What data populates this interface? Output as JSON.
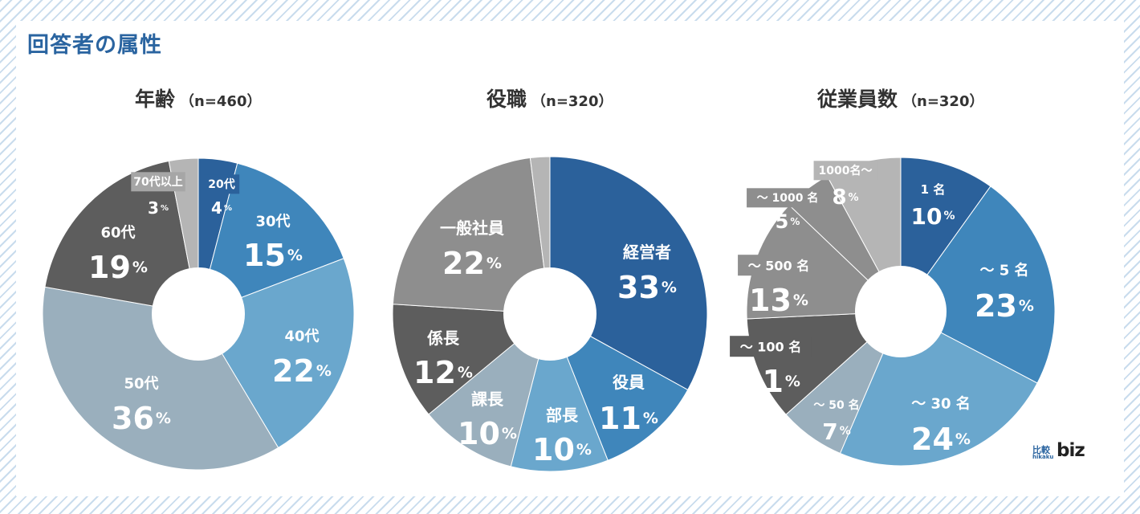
{
  "header": {
    "title": "回答者の属性"
  },
  "logo": {
    "kanji": "比較",
    "romaji": "hikaku",
    "word": "biz"
  },
  "colors": {
    "dark_blue": "#2b619b",
    "mid_blue": "#3f86bb",
    "light_blue": "#6aa7cd",
    "blue_gray": "#9aafbd",
    "dark_gray": "#5d5d5d",
    "mid_gray": "#8e8e8e",
    "light_gray": "#b5b5b5"
  },
  "chart_data": [
    {
      "type": "pie",
      "title": "年齢",
      "n_label": "（n=460）",
      "slices": [
        {
          "label": "20代",
          "value": 4,
          "value_text": "4",
          "color": "#2b619b"
        },
        {
          "label": "30代",
          "value": 15,
          "value_text": "15",
          "color": "#3f86bb"
        },
        {
          "label": "40代",
          "value": 22,
          "value_text": "22",
          "color": "#6aa7cd"
        },
        {
          "label": "50代",
          "value": 36,
          "value_text": "36",
          "color": "#9aafbd"
        },
        {
          "label": "60代",
          "value": 19,
          "value_text": "19",
          "color": "#5d5d5d"
        },
        {
          "label": "70代以上",
          "value": 3,
          "value_text": "3",
          "color": "#b5b5b5"
        }
      ],
      "unit": "%"
    },
    {
      "type": "pie",
      "title": "役職",
      "n_label": "（n=320）",
      "slices": [
        {
          "label": "経営者",
          "value": 33,
          "value_text": "33",
          "color": "#2b619b"
        },
        {
          "label": "役員",
          "value": 11,
          "value_text": "11",
          "color": "#3f86bb"
        },
        {
          "label": "部長",
          "value": 10,
          "value_text": "10",
          "color": "#6aa7cd"
        },
        {
          "label": "課長",
          "value": 10,
          "value_text": "10",
          "color": "#9aafbd"
        },
        {
          "label": "係長",
          "value": 12,
          "value_text": "12",
          "color": "#5d5d5d"
        },
        {
          "label": "一般社員",
          "value": 22,
          "value_text": "22",
          "color": "#8e8e8e"
        },
        {
          "label": "",
          "value": 2,
          "value_text": "",
          "color": "#b5b5b5"
        }
      ],
      "unit": "%"
    },
    {
      "type": "pie",
      "title": "従業員数",
      "n_label": "（n=320）",
      "slices": [
        {
          "label": "1 名",
          "value": 10,
          "value_text": "10",
          "color": "#2b619b"
        },
        {
          "label": "～ 5 名",
          "value": 23,
          "value_text": "23",
          "color": "#3f86bb"
        },
        {
          "label": "～ 30 名",
          "value": 24,
          "value_text": "24",
          "color": "#6aa7cd"
        },
        {
          "label": "～ 50 名",
          "value": 7,
          "value_text": "7",
          "color": "#9aafbd"
        },
        {
          "label": "～ 100 名",
          "value": 11,
          "value_text": "11",
          "color": "#5d5d5d"
        },
        {
          "label": "～ 500 名",
          "value": 13,
          "value_text": "13",
          "color": "#8e8e8e"
        },
        {
          "label": "～ 1000 名",
          "value": 5,
          "value_text": "5",
          "color": "#8e8e8e"
        },
        {
          "label": "1000名～",
          "value": 8,
          "value_text": "8",
          "color": "#b5b5b5"
        }
      ],
      "unit": "%"
    }
  ]
}
